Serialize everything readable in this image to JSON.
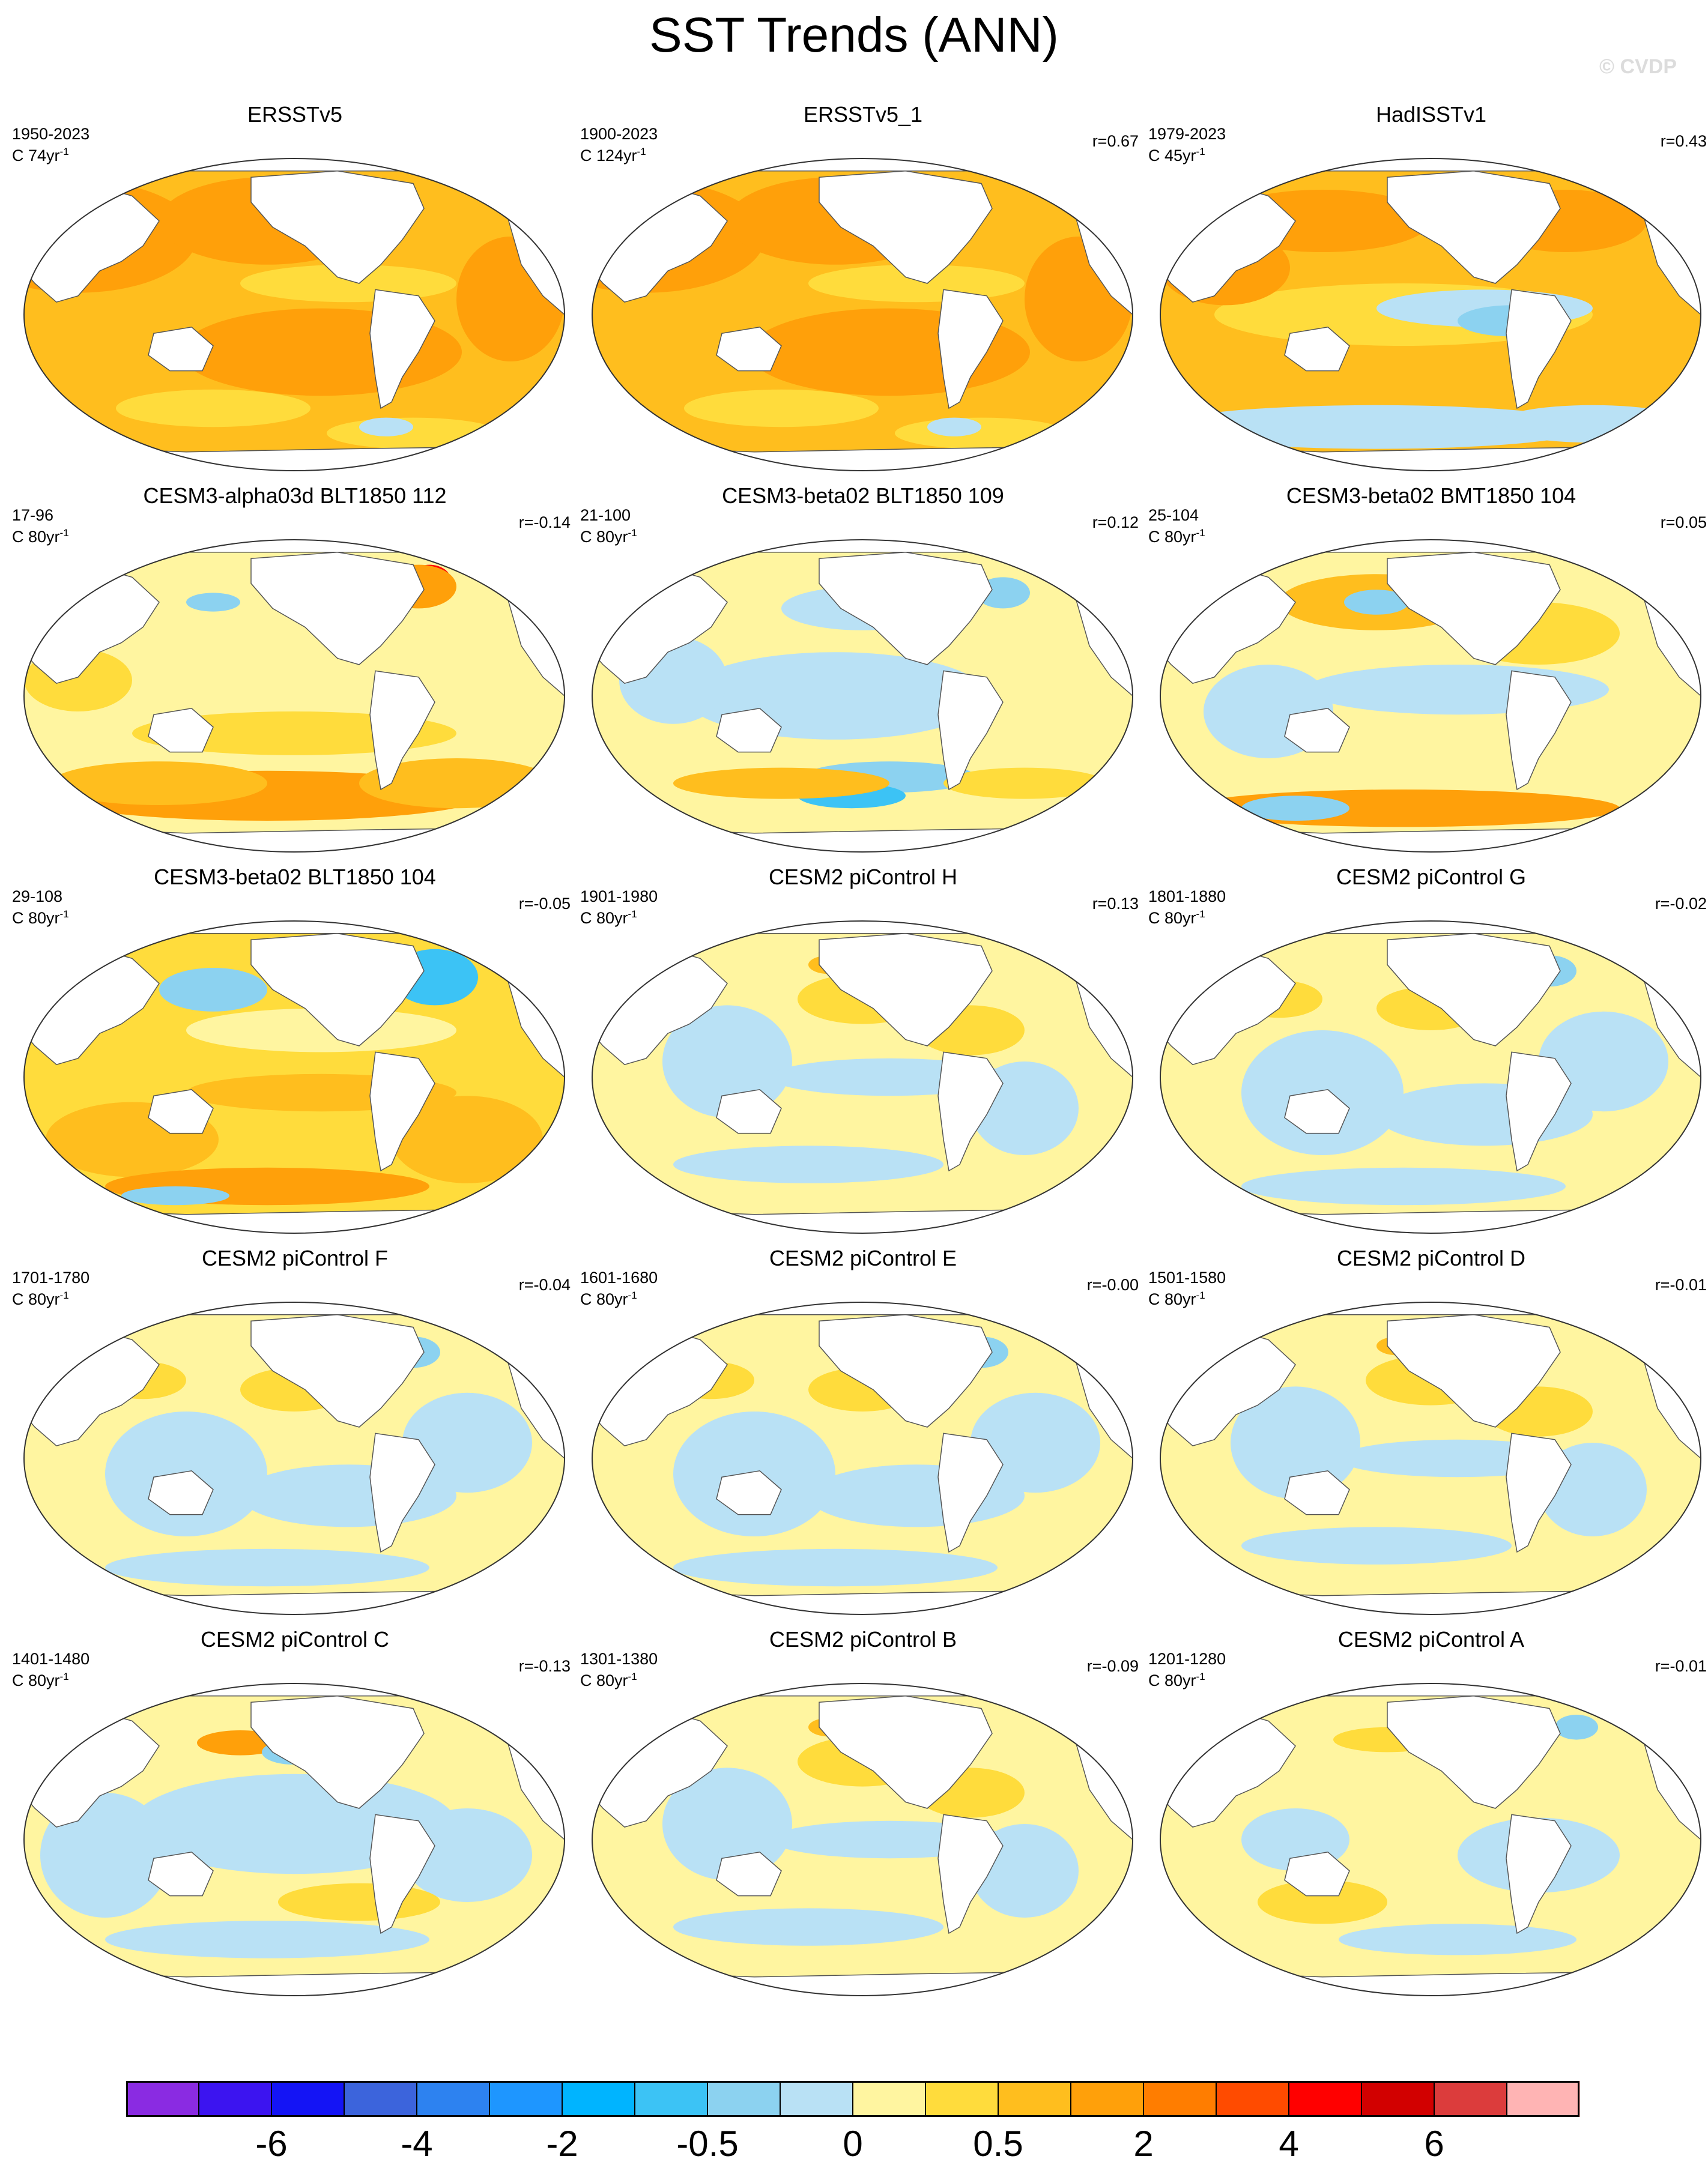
{
  "title": "SST Trends (ANN)",
  "copyright": "© CVDP",
  "panels": [
    {
      "title": "ERSSTv5",
      "period": "1950-2023",
      "scale_prefix": "C 74yr",
      "scale_exp": "-1",
      "corr": "",
      "pattern": "warm_strong"
    },
    {
      "title": "ERSSTv5_1",
      "period": "1900-2023",
      "scale_prefix": "C 124yr",
      "scale_exp": "-1",
      "corr": "r=0.67",
      "pattern": "warm_strong"
    },
    {
      "title": "HadISSTv1",
      "period": "1979-2023",
      "scale_prefix": "C 45yr",
      "scale_exp": "-1",
      "corr": "r=0.43",
      "pattern": "warm_lanina"
    },
    {
      "title": "CESM3-alpha03d BLT1850 112",
      "period": "17-96",
      "scale_prefix": "C 80yr",
      "scale_exp": "-1",
      "corr": "r=-0.14",
      "pattern": "warm_south"
    },
    {
      "title": "CESM3-beta02 BLT1850 109",
      "period": "21-100",
      "scale_prefix": "C 80yr",
      "scale_exp": "-1",
      "corr": "r=0.12",
      "pattern": "mixed_cool"
    },
    {
      "title": "CESM3-beta02 BMT1850 104",
      "period": "25-104",
      "scale_prefix": "C 80yr",
      "scale_exp": "-1",
      "corr": "r=0.05",
      "pattern": "warm_mixed"
    },
    {
      "title": "CESM3-beta02 BLT1850 104",
      "period": "29-108",
      "scale_prefix": "C 80yr",
      "scale_exp": "-1",
      "corr": "r=-0.05",
      "pattern": "warm_south2"
    },
    {
      "title": "CESM2 piControl H",
      "period": "1901-1980",
      "scale_prefix": "C 80yr",
      "scale_exp": "-1",
      "corr": "r=0.13",
      "pattern": "weak"
    },
    {
      "title": "CESM2 piControl G",
      "period": "1801-1880",
      "scale_prefix": "C 80yr",
      "scale_exp": "-1",
      "corr": "r=-0.02",
      "pattern": "weak_cool"
    },
    {
      "title": "CESM2 piControl F",
      "period": "1701-1780",
      "scale_prefix": "C 80yr",
      "scale_exp": "-1",
      "corr": "r=-0.04",
      "pattern": "weak_cool"
    },
    {
      "title": "CESM2 piControl E",
      "period": "1601-1680",
      "scale_prefix": "C 80yr",
      "scale_exp": "-1",
      "corr": "r=-0.00",
      "pattern": "weak_cool"
    },
    {
      "title": "CESM2 piControl D",
      "period": "1501-1580",
      "scale_prefix": "C 80yr",
      "scale_exp": "-1",
      "corr": "r=-0.01",
      "pattern": "weak"
    },
    {
      "title": "CESM2 piControl C",
      "period": "1401-1480",
      "scale_prefix": "C 80yr",
      "scale_exp": "-1",
      "corr": "r=-0.13",
      "pattern": "cool_npac"
    },
    {
      "title": "CESM2 piControl B",
      "period": "1301-1380",
      "scale_prefix": "C 80yr",
      "scale_exp": "-1",
      "corr": "r=-0.09",
      "pattern": "weak"
    },
    {
      "title": "CESM2 piControl A",
      "period": "1201-1280",
      "scale_prefix": "C 80yr",
      "scale_exp": "-1",
      "corr": "r=-0.01",
      "pattern": "weak_warm"
    }
  ],
  "colorbar": {
    "colors": [
      "#8a2be2",
      "#3c14f0",
      "#1414f5",
      "#3c64dc",
      "#2d82f0",
      "#1e96ff",
      "#00b4ff",
      "#3cc3f5",
      "#8cd2f0",
      "#b9e1f5",
      "#fff5a0",
      "#ffdc3c",
      "#ffbe1e",
      "#ffa00a",
      "#ff7d00",
      "#ff4b00",
      "#ff0000",
      "#d20000",
      "#dc3c3c",
      "#ffb4b4"
    ],
    "labels": [
      "-6",
      "-4",
      "-2",
      "-0.5",
      "0",
      "0.5",
      "2",
      "4",
      "6"
    ]
  }
}
